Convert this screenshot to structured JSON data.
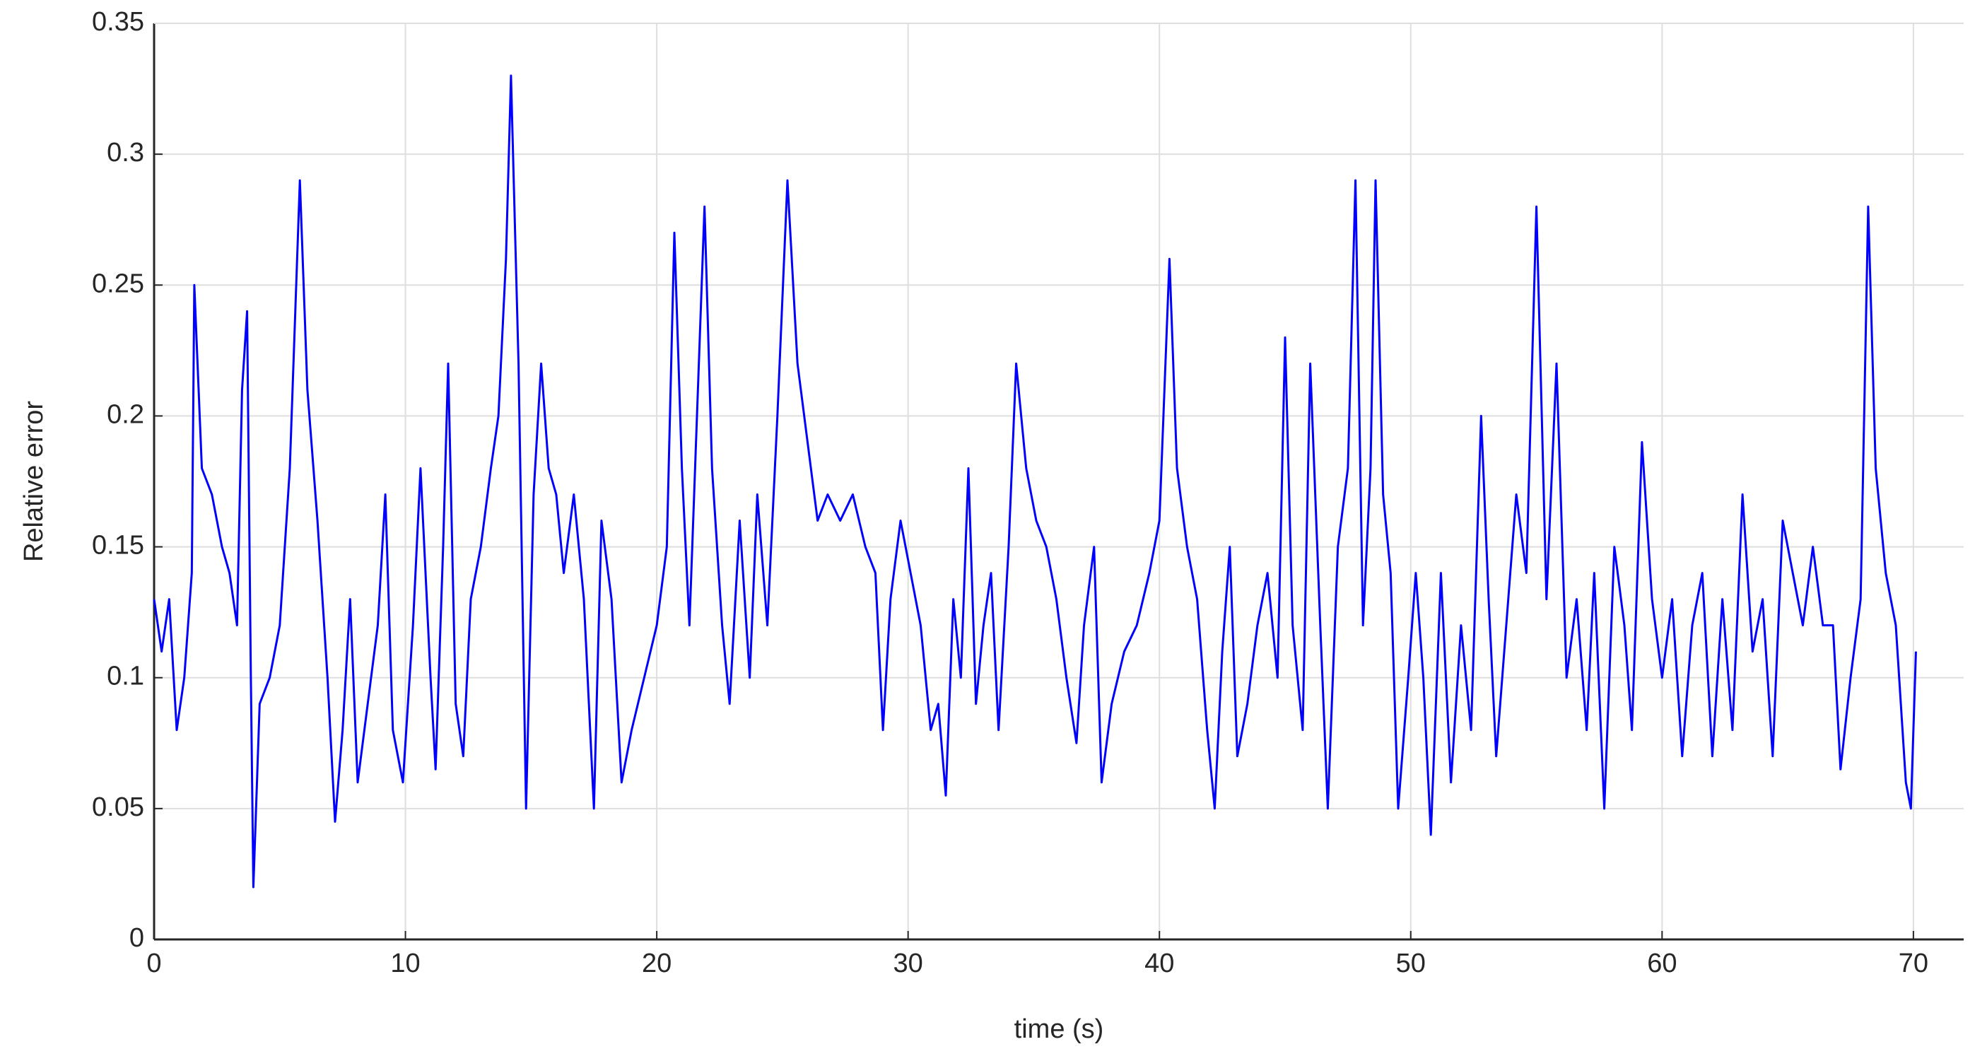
{
  "chart_data": {
    "type": "line",
    "x_label": "time (s)",
    "y_label": "Relative error",
    "xlim": [
      0,
      72
    ],
    "ylim": [
      0,
      0.35
    ],
    "xticks": [
      0,
      10,
      20,
      30,
      40,
      50,
      60,
      70
    ],
    "yticks": [
      0,
      0.05,
      0.1,
      0.15,
      0.2,
      0.25,
      0.3,
      0.35
    ],
    "grid": true,
    "x": [
      0,
      0.3,
      0.6,
      0.9,
      1.2,
      1.5,
      1.6,
      1.9,
      2.3,
      2.7,
      3.0,
      3.3,
      3.5,
      3.7,
      3.85,
      3.95,
      4.2,
      4.6,
      5.0,
      5.4,
      5.8,
      6.1,
      6.5,
      6.9,
      7.2,
      7.5,
      7.8,
      8.1,
      8.5,
      8.9,
      9.2,
      9.5,
      9.9,
      10.3,
      10.6,
      11.0,
      11.2,
      11.5,
      11.7,
      12.0,
      12.3,
      12.6,
      13.0,
      13.4,
      13.7,
      14.0,
      14.2,
      14.5,
      14.8,
      15.1,
      15.4,
      15.7,
      16.0,
      16.3,
      16.7,
      17.1,
      17.5,
      17.8,
      18.2,
      18.6,
      19.0,
      19.5,
      20.0,
      20.4,
      20.7,
      21.0,
      21.3,
      21.6,
      21.9,
      22.2,
      22.6,
      22.9,
      23.3,
      23.7,
      24.0,
      24.4,
      24.8,
      25.2,
      25.6,
      26.0,
      26.4,
      26.8,
      27.3,
      27.8,
      28.3,
      28.7,
      29.0,
      29.3,
      29.7,
      30.1,
      30.5,
      30.9,
      31.2,
      31.5,
      31.8,
      32.1,
      32.4,
      32.7,
      33.0,
      33.3,
      33.6,
      34.0,
      34.3,
      34.7,
      35.1,
      35.5,
      35.9,
      36.3,
      36.7,
      37.0,
      37.4,
      37.7,
      38.1,
      38.6,
      39.1,
      39.6,
      40.0,
      40.4,
      40.7,
      41.1,
      41.5,
      41.9,
      42.2,
      42.5,
      42.8,
      43.1,
      43.5,
      43.9,
      44.3,
      44.7,
      45.0,
      45.3,
      45.7,
      46.0,
      46.4,
      46.7,
      47.1,
      47.5,
      47.8,
      48.1,
      48.4,
      48.6,
      48.9,
      49.2,
      49.5,
      49.9,
      50.2,
      50.5,
      50.8,
      51.2,
      51.6,
      52.0,
      52.4,
      52.8,
      53.1,
      53.4,
      53.8,
      54.2,
      54.6,
      55.0,
      55.4,
      55.8,
      56.2,
      56.6,
      57.0,
      57.3,
      57.7,
      58.1,
      58.5,
      58.8,
      59.2,
      59.6,
      60.0,
      60.4,
      60.8,
      61.2,
      61.6,
      62.0,
      62.4,
      62.8,
      63.2,
      63.6,
      64.0,
      64.4,
      64.8,
      65.2,
      65.6,
      66.0,
      66.4,
      66.8,
      67.1,
      67.5,
      67.9,
      68.2,
      68.5,
      68.9,
      69.3,
      69.7,
      69.9,
      70.1
    ],
    "series": [
      {
        "color": "#0000ff",
        "values": [
          0.13,
          0.11,
          0.13,
          0.08,
          0.1,
          0.14,
          0.25,
          0.18,
          0.17,
          0.15,
          0.14,
          0.12,
          0.21,
          0.24,
          0.1,
          0.02,
          0.09,
          0.1,
          0.12,
          0.18,
          0.29,
          0.21,
          0.16,
          0.1,
          0.045,
          0.08,
          0.13,
          0.06,
          0.09,
          0.12,
          0.17,
          0.08,
          0.06,
          0.12,
          0.18,
          0.1,
          0.065,
          0.15,
          0.22,
          0.09,
          0.07,
          0.13,
          0.15,
          0.18,
          0.2,
          0.26,
          0.33,
          0.22,
          0.05,
          0.17,
          0.22,
          0.18,
          0.17,
          0.14,
          0.17,
          0.13,
          0.05,
          0.16,
          0.13,
          0.06,
          0.08,
          0.1,
          0.12,
          0.15,
          0.27,
          0.18,
          0.12,
          0.2,
          0.28,
          0.18,
          0.12,
          0.09,
          0.16,
          0.1,
          0.17,
          0.12,
          0.2,
          0.29,
          0.22,
          0.19,
          0.16,
          0.17,
          0.16,
          0.17,
          0.15,
          0.14,
          0.08,
          0.13,
          0.16,
          0.14,
          0.12,
          0.08,
          0.09,
          0.055,
          0.13,
          0.1,
          0.18,
          0.09,
          0.12,
          0.14,
          0.08,
          0.15,
          0.22,
          0.18,
          0.16,
          0.15,
          0.13,
          0.1,
          0.075,
          0.12,
          0.15,
          0.06,
          0.09,
          0.11,
          0.12,
          0.14,
          0.16,
          0.26,
          0.18,
          0.15,
          0.13,
          0.08,
          0.05,
          0.11,
          0.15,
          0.07,
          0.09,
          0.12,
          0.14,
          0.1,
          0.23,
          0.12,
          0.08,
          0.22,
          0.12,
          0.05,
          0.15,
          0.18,
          0.29,
          0.12,
          0.18,
          0.29,
          0.17,
          0.14,
          0.05,
          0.1,
          0.14,
          0.1,
          0.04,
          0.14,
          0.06,
          0.12,
          0.08,
          0.2,
          0.13,
          0.07,
          0.12,
          0.17,
          0.14,
          0.28,
          0.13,
          0.22,
          0.1,
          0.13,
          0.08,
          0.14,
          0.05,
          0.15,
          0.12,
          0.08,
          0.19,
          0.13,
          0.1,
          0.13,
          0.07,
          0.12,
          0.14,
          0.07,
          0.13,
          0.08,
          0.17,
          0.11,
          0.13,
          0.07,
          0.16,
          0.14,
          0.12,
          0.15,
          0.12,
          0.12,
          0.065,
          0.1,
          0.13,
          0.28,
          0.18,
          0.14,
          0.12,
          0.06,
          0.05,
          0.11
        ]
      }
    ]
  }
}
